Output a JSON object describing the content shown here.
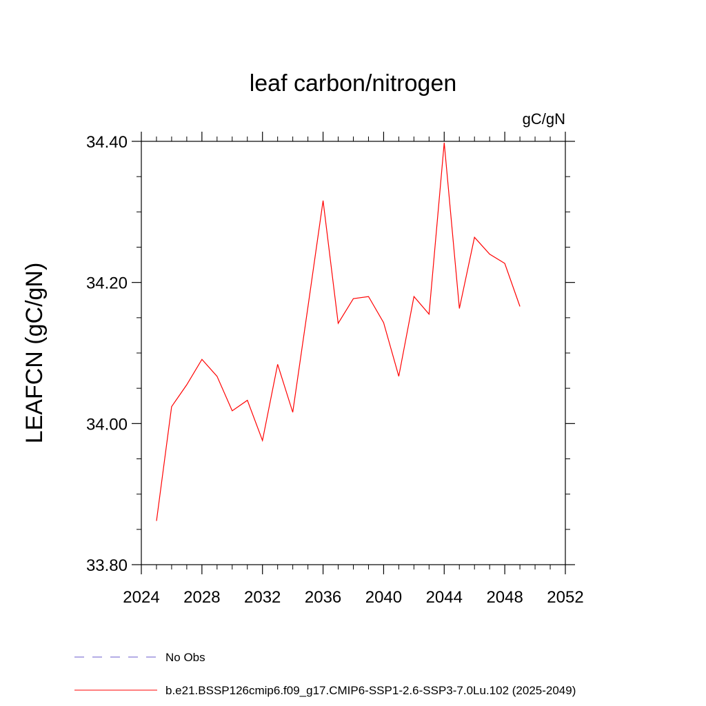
{
  "chart_data": {
    "type": "line",
    "title": "leaf carbon/nitrogen",
    "units_label": "gC/gN",
    "ylabel": "LEAFCN  (gC/gN)",
    "xlabel": "",
    "xlim": [
      2024,
      2052
    ],
    "ylim": [
      33.8,
      34.4
    ],
    "x_ticks": [
      2024,
      2028,
      2032,
      2036,
      2040,
      2044,
      2048,
      2052
    ],
    "x_tick_labels": [
      "2024",
      "2028",
      "2032",
      "2036",
      "2040",
      "2044",
      "2048",
      "2052"
    ],
    "y_ticks": [
      33.8,
      34.0,
      34.2,
      34.4
    ],
    "y_tick_labels": [
      "33.80",
      "34.00",
      "34.20",
      "34.40"
    ],
    "series": [
      {
        "name": "b.e21.BSSP126cmip6.f09_g17.CMIP6-SSP1-2.6-SSP3-7.0Lu.102 (2025-2049)",
        "color": "#ff0000",
        "x": [
          2025,
          2026,
          2027,
          2028,
          2029,
          2030,
          2031,
          2032,
          2033,
          2034,
          2035,
          2036,
          2037,
          2038,
          2039,
          2040,
          2041,
          2042,
          2043,
          2044,
          2045,
          2046,
          2047,
          2048,
          2049
        ],
        "values": [
          33.862,
          34.024,
          34.055,
          34.091,
          34.067,
          34.018,
          34.033,
          33.976,
          34.084,
          34.016,
          34.165,
          34.316,
          34.142,
          34.177,
          34.18,
          34.143,
          34.067,
          34.18,
          34.155,
          34.398,
          34.163,
          34.264,
          34.24,
          34.227,
          34.166
        ]
      }
    ],
    "legend": [
      {
        "label": "No Obs",
        "color": "#6a5acd",
        "style": "dashed"
      },
      {
        "label": "b.e21.BSSP126cmip6.f09_g17.CMIP6-SSP1-2.6-SSP3-7.0Lu.102 (2025-2049)",
        "color": "#ff0000",
        "style": "solid"
      }
    ],
    "legend_position": "bottom-left",
    "grid": false
  }
}
